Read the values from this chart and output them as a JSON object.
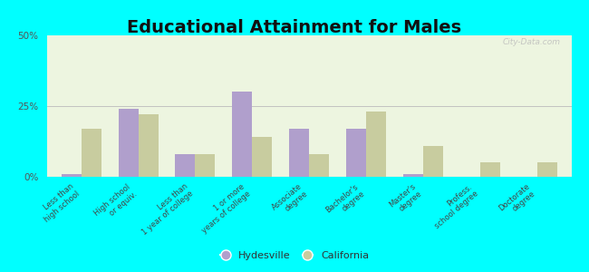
{
  "title": "Educational Attainment for Males",
  "categories": [
    "Less than\nhigh school",
    "High school\nor equiv.",
    "Less than\n1 year of college",
    "1 or more\nyears of college",
    "Associate\ndegree",
    "Bachelor's\ndegree",
    "Master's\ndegree",
    "Profess.\nschool degree",
    "Doctorate\ndegree"
  ],
  "hydesville": [
    1,
    24,
    8,
    30,
    17,
    17,
    1,
    0,
    0
  ],
  "california": [
    17,
    22,
    8,
    14,
    8,
    23,
    11,
    5,
    5
  ],
  "hydesville_color": "#b09fcc",
  "california_color": "#c8cc9f",
  "background_color": "#edf5e0",
  "outer_background": "#00ffff",
  "ylim": [
    0,
    50
  ],
  "yticks": [
    0,
    25,
    50
  ],
  "ytick_labels": [
    "0%",
    "25%",
    "50%"
  ],
  "bar_width": 0.35,
  "title_fontsize": 14,
  "legend_labels": [
    "Hydesville",
    "California"
  ]
}
